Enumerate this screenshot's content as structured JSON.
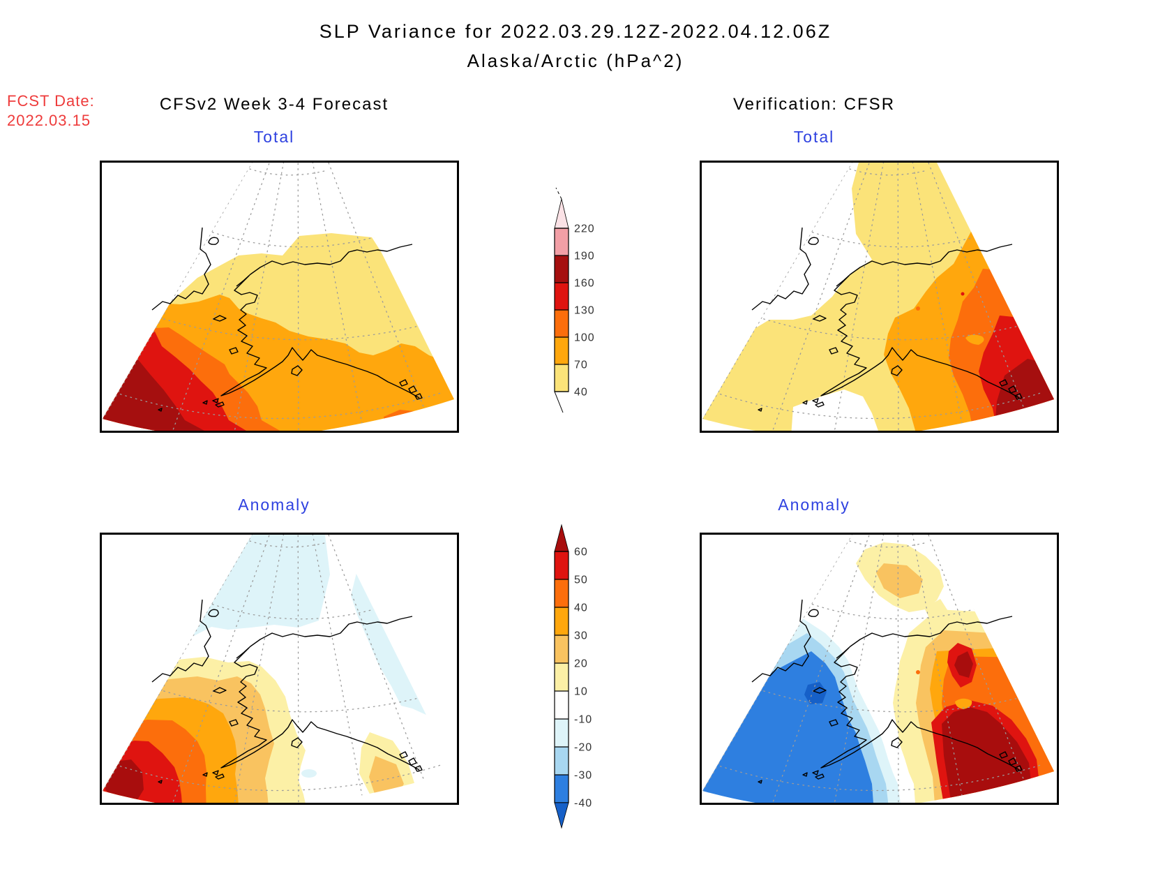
{
  "title": {
    "line1": "SLP Variance for 2022.03.29.12Z-2022.04.12.06Z",
    "line2": "Alaska/Arctic (hPa^2)"
  },
  "fcst_date": {
    "label": "FCST Date:",
    "value": "2022.03.15",
    "color": "#ee3b3b"
  },
  "columns": {
    "left_header": "CFSv2 Week 3-4 Forecast",
    "right_header": "Verification: CFSR"
  },
  "panels": [
    {
      "id": "forecast-total",
      "title": "Total"
    },
    {
      "id": "verification-total",
      "title": "Total"
    },
    {
      "id": "forecast-anomaly",
      "title": "Anomaly"
    },
    {
      "id": "verification-anomaly",
      "title": "Anomaly"
    }
  ],
  "panel_title_color": "#2e41e0",
  "colorbars": {
    "total": {
      "ticks_top_to_bottom": [
        "220",
        "190",
        "160",
        "130",
        "100",
        "70",
        "40"
      ],
      "band_colors_top_to_bottom": [
        "#F29FA6",
        "#A50F0F",
        "#DF1410",
        "#FC6E0C",
        "#FFA70D",
        "#FBE379"
      ],
      "above_color": "#FBE2E6",
      "below_color": "#FFFFFF"
    },
    "anomaly": {
      "ticks_top_to_bottom": [
        "60",
        "50",
        "40",
        "30",
        "20",
        "10",
        "-10",
        "-20",
        "-30",
        "-40"
      ],
      "band_colors_top_to_bottom": [
        "#DF1410",
        "#FC6E0C",
        "#FFA70D",
        "#F9C360",
        "#FCF0A6",
        "#FFFFFF",
        "#DEF4F9",
        "#A8D7F1",
        "#2E7FE0"
      ],
      "above_color": "#A80D0D",
      "below_color": "#1660C8"
    }
  },
  "chart_data": [
    {
      "type": "heatmap",
      "panel": "CFSv2 Week 3-4 Forecast - Total",
      "units": "hPa^2",
      "region": "Alaska/Arctic",
      "contour_levels": [
        40,
        70,
        100,
        130,
        160,
        190,
        220
      ],
      "palette": {
        "40-70": "#FBE379",
        "70-100": "#FFA70D",
        "100-130": "#FC6E0C",
        "130-160": "#DF1410",
        "160-190": "#A50F0F",
        "190-220": "#F29FA6"
      },
      "description": "Total SLP variance maximum 160-190 hPa^2 over the western Bering Sea (southwest corner of domain), decreasing northeastward: 130-160 and 100-130 bands across the Bering Sea and Alaska Peninsula, 70-100 over southern and western Alaska and the Gulf of Alaska (secondary 100-130 patch at bottom right), 40-70 over interior and northern Alaska and Chukotka, below 40 over the Arctic Ocean at the top of the wedge."
    },
    {
      "type": "heatmap",
      "panel": "Verification: CFSR - Total",
      "units": "hPa^2",
      "region": "Alaska/Arctic",
      "contour_levels": [
        40,
        70,
        100,
        130,
        160,
        190,
        220
      ],
      "palette": {
        "40-70": "#FBE379",
        "70-100": "#FFA70D",
        "100-130": "#FC6E0C",
        "130-160": "#DF1410",
        "160-190": "#A50F0F",
        "190-220": "#F29FA6"
      },
      "description": "Observed total variance below 40 hPa^2 over Chukotka (northwest) and a small area south of western Alaska, 40-70 over the Bering Sea and western Alaska, increasing eastward: 70-100 over central Alaska, 100-130 over eastern Alaska (with a small 40-70 island inside), 130-160 along the Gulf of Alaska coast and a 160-190 maximum at the southeast corner."
    },
    {
      "type": "heatmap",
      "panel": "CFSv2 Week 3-4 Forecast - Anomaly",
      "units": "hPa^2",
      "region": "Alaska/Arctic",
      "contour_levels": [
        -40,
        -30,
        -20,
        -10,
        10,
        20,
        30,
        40,
        50,
        60
      ],
      "palette": {
        "10-20": "#FCF0A6",
        "20-30": "#F9C360",
        "30-40": "#FFA70D",
        "40-50": "#FC6E0C",
        "50-60": "#DF1410",
        ">60": "#A80D0D",
        "-20--10": "#DEF4F9",
        "-30--20": "#A8D7F1",
        "-40--30": "#2E7FE0",
        "<-40": "#1660C8"
      },
      "description": "Forecast anomaly strongly positive over the southwestern Bering Sea with concentric bands from 10-20 up to a >60 hPa^2 core near the southwest edge; weak negative anomaly (-10 to -20) along the Arctic at the top of the wedge and in a thin band along the northeast edge; small positive patch (10-30) over the Gulf of Alaska panhandle; near zero elsewhere."
    },
    {
      "type": "heatmap",
      "panel": "Verification: CFSR - Anomaly",
      "units": "hPa^2",
      "region": "Alaska/Arctic",
      "contour_levels": [
        -40,
        -30,
        -20,
        -10,
        10,
        20,
        30,
        40,
        50,
        60
      ],
      "palette": {
        "10-20": "#FCF0A6",
        "20-30": "#F9C360",
        "30-40": "#FFA70D",
        "40-50": "#FC6E0C",
        "50-60": "#DF1410",
        ">60": "#A80D0D",
        "-20--10": "#DEF4F9",
        "-30--20": "#A8D7F1",
        "-40--30": "#2E7FE0",
        "<-40": "#1660C8"
      },
      "description": "Observed anomaly strongly negative over the Bering Sea and western Alaska (large -30 to -40 region with a small core below -40), positive 10-30 blob over the Beaufort Sea at top center, and strongly positive over eastern Alaska and the Gulf of Alaska: bands from 10 up to >60 with a dark >60 maximum covering the southeast corner and a secondary >60 core over eastern interior Alaska."
    }
  ]
}
